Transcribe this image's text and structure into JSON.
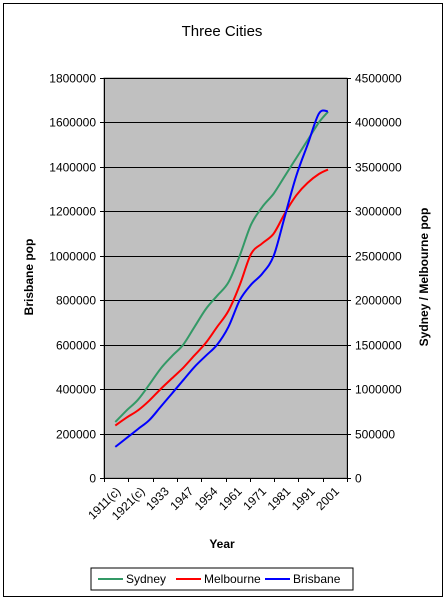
{
  "chart_data": {
    "type": "line",
    "title": "Three Cities",
    "xlabel": "Year",
    "ylabel_left": "Brisbane pop",
    "ylabel_right": "Sydney / Melbourne pop",
    "categories": [
      "1911(c)",
      "1921(c)",
      "1933",
      "1947",
      "1954",
      "1961",
      "1971",
      "1981",
      "1991",
      "2001"
    ],
    "ylim_left": [
      0,
      1800000
    ],
    "ylim_right": [
      0,
      4500000
    ],
    "yticks_left": [
      0,
      200000,
      400000,
      600000,
      800000,
      1000000,
      1200000,
      1400000,
      1600000,
      1800000
    ],
    "yticks_right": [
      0,
      500000,
      1000000,
      1500000,
      2000000,
      2500000,
      3000000,
      3500000,
      4000000,
      4500000
    ],
    "grid": true,
    "plot_background": "#c0c0c0",
    "legend_position": "bottom",
    "series": [
      {
        "name": "Sydney",
        "axis": "right",
        "color": "#339966",
        "x": [
          1910,
          1915,
          1920,
          1925,
          1930,
          1935,
          1940,
          1945,
          1950,
          1955,
          1960,
          1965,
          1970,
          1975,
          1980,
          1985,
          1990,
          1995,
          2000,
          2004
        ],
        "values": [
          630000,
          760000,
          880000,
          1050000,
          1230000,
          1370000,
          1500000,
          1700000,
          1900000,
          2050000,
          2200000,
          2500000,
          2850000,
          3050000,
          3200000,
          3400000,
          3600000,
          3800000,
          4000000,
          4120000
        ]
      },
      {
        "name": "Melbourne",
        "axis": "right",
        "color": "#ff0000",
        "x": [
          1910,
          1915,
          1920,
          1925,
          1930,
          1935,
          1940,
          1945,
          1950,
          1955,
          1960,
          1965,
          1970,
          1975,
          1980,
          1985,
          1990,
          1995,
          2000,
          2004
        ],
        "values": [
          590000,
          680000,
          760000,
          870000,
          1000000,
          1120000,
          1240000,
          1380000,
          1520000,
          1700000,
          1880000,
          2170000,
          2520000,
          2640000,
          2750000,
          2980000,
          3180000,
          3320000,
          3420000,
          3470000
        ]
      },
      {
        "name": "Brisbane",
        "axis": "left",
        "color": "#0000ff",
        "x": [
          1910,
          1915,
          1920,
          1925,
          1930,
          1935,
          1940,
          1945,
          1950,
          1955,
          1960,
          1965,
          1970,
          1975,
          1980,
          1985,
          1990,
          1995,
          2000,
          2004
        ],
        "values": [
          140000,
          180000,
          220000,
          260000,
          320000,
          380000,
          440000,
          500000,
          550000,
          600000,
          680000,
          800000,
          870000,
          920000,
          1000000,
          1180000,
          1360000,
          1500000,
          1640000,
          1650000
        ]
      }
    ]
  }
}
